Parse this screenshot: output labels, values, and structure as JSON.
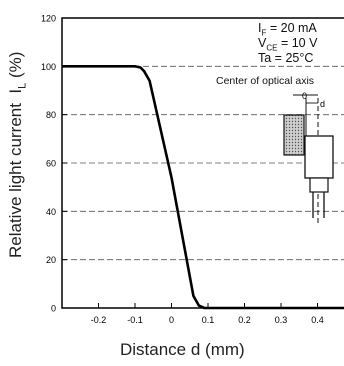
{
  "chart_data": {
    "type": "line",
    "xlabel": "Distance d (mm)",
    "ylabel": "Relative light current",
    "ylabel_symbol": "I",
    "ylabel_sub": "L",
    "ylabel_unit": "(%)",
    "xlim": [
      -0.3,
      0.5
    ],
    "ylim": [
      0,
      120
    ],
    "xticks": [
      -0.2,
      -0.1,
      0,
      0.1,
      0.2,
      0.3,
      0.4
    ],
    "xtick_labels": [
      "-0.2",
      "-0.1",
      "0",
      "0.1",
      "0.2",
      "0.3",
      "0.4"
    ],
    "yticks": [
      0,
      20,
      40,
      60,
      80,
      100,
      120
    ],
    "ytick_labels": [
      "0",
      "20",
      "40",
      "60",
      "80",
      "100",
      "120"
    ],
    "grid": true,
    "series": [
      {
        "x": [
          -0.3,
          -0.1,
          -0.085,
          -0.075,
          -0.06,
          0.0,
          0.06,
          0.075,
          0.09,
          0.5
        ],
        "y": [
          100,
          100,
          99.5,
          98,
          94,
          54,
          5,
          1,
          0,
          0
        ]
      }
    ],
    "conditions": [
      {
        "sym": "I",
        "sub": "F",
        "rest": " = 20 mA"
      },
      {
        "sym": "V",
        "sub": "CE",
        "rest": " = 10 V"
      },
      {
        "sym": "Ta",
        "sub": "",
        "rest": " = 25°C"
      }
    ],
    "annotation": "Center of optical axis",
    "diagram_label_zero": "0",
    "diagram_label_d": "d"
  }
}
